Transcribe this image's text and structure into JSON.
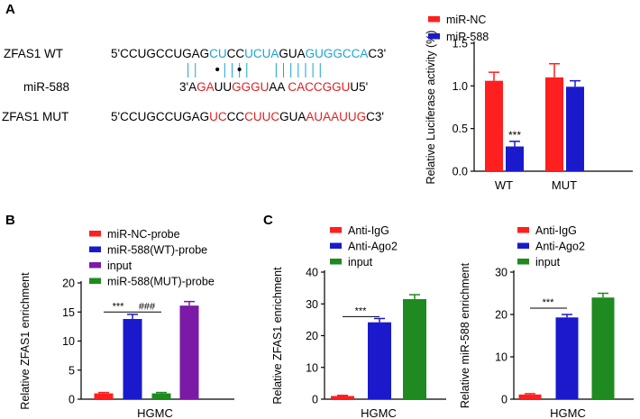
{
  "panels": {
    "a": "A",
    "b": "B",
    "c": "C"
  },
  "colors": {
    "red": "#ff1f1f",
    "blue": "#1a1acc",
    "purple": "#7a1aa6",
    "green": "#1f8a1f",
    "cyan": "#1aa3d6",
    "seq_red": "#e02020"
  },
  "sequences": {
    "wt_label": "ZFAS1 WT",
    "wt_parts": [
      {
        "t": "5'CCUGCCUGAG",
        "c": "black"
      },
      {
        "t": "CU",
        "c": "cyan"
      },
      {
        "t": "CC",
        "c": "black"
      },
      {
        "t": "UCUA",
        "c": "cyan"
      },
      {
        "t": "GUA",
        "c": "black"
      },
      {
        "t": "GUGGCCA",
        "c": "cyan"
      },
      {
        "t": "C3'",
        "c": "black"
      }
    ],
    "mir_label": "miR-588",
    "mir_parts": [
      {
        "t": "3'A",
        "c": "black"
      },
      {
        "t": "GA",
        "c": "seq_red"
      },
      {
        "t": "UU",
        "c": "black"
      },
      {
        "t": "GGGU",
        "c": "seq_red"
      },
      {
        "t": "AA",
        "c": "black"
      },
      {
        "t": "    ",
        "c": "black"
      },
      {
        "t": "CACCGGU",
        "c": "seq_red"
      },
      {
        "t": "U5'",
        "c": "black"
      }
    ],
    "mut_label": "ZFAS1 MUT",
    "mut_parts": [
      {
        "t": "5'CCUGCCUGAG",
        "c": "black"
      },
      {
        "t": "UC",
        "c": "seq_red"
      },
      {
        "t": "CC",
        "c": "black"
      },
      {
        "t": "CUUC",
        "c": "seq_red"
      },
      {
        "t": "GUA",
        "c": "black"
      },
      {
        "t": "AUAAUUG",
        "c": "seq_red"
      },
      {
        "t": "C3'",
        "c": "black"
      }
    ]
  },
  "chart_data": [
    {
      "id": "A",
      "type": "bar",
      "categories": [
        "WT",
        "MUT"
      ],
      "series": [
        {
          "name": "miR-NC",
          "color": "#ff1f1f",
          "values": [
            1.06,
            1.1
          ],
          "errors": [
            0.1,
            0.16
          ]
        },
        {
          "name": "miR-588",
          "color": "#1a1acc",
          "values": [
            0.29,
            0.99
          ],
          "errors": [
            0.06,
            0.07
          ]
        }
      ],
      "ylabel": "Relative Luciferase activity (%)",
      "ylim": [
        0,
        1.5
      ],
      "yticks": [
        "0.0",
        "0.5",
        "1.0",
        "1.5"
      ],
      "annotations": [
        "***"
      ],
      "legend": "top-right"
    },
    {
      "id": "B",
      "type": "bar",
      "categories": [
        "HGMC"
      ],
      "series": [
        {
          "name": "miR-NC-probe",
          "color": "#ff1f1f",
          "values": [
            1.0
          ],
          "errors": [
            0.15
          ]
        },
        {
          "name": "miR-588(WT)-probe",
          "color": "#1a1acc",
          "values": [
            13.8
          ],
          "errors": [
            0.8
          ]
        },
        {
          "name": "input",
          "color": "#7a1aa6",
          "values": [
            16.1
          ],
          "errors": [
            0.7
          ]
        },
        {
          "name": "miR-588(MUT)-probe",
          "color": "#1f8a1f",
          "values": [
            1.0
          ],
          "errors": [
            0.15
          ]
        }
      ],
      "ylabel": "Relative ZFAS1 enrichment",
      "ylim": [
        0,
        20
      ],
      "yticks": [
        "0",
        "5",
        "10",
        "15",
        "20"
      ],
      "annotations": [
        "***",
        "###"
      ],
      "legend": "top"
    },
    {
      "id": "C1",
      "type": "bar",
      "categories": [
        "HGMC"
      ],
      "series": [
        {
          "name": "Anti-IgG",
          "color": "#ff1f1f",
          "values": [
            1.0
          ],
          "errors": [
            0.2
          ]
        },
        {
          "name": "Anti-Ago2",
          "color": "#1a1acc",
          "values": [
            24.2
          ],
          "errors": [
            1.2
          ]
        },
        {
          "name": "input",
          "color": "#1f8a1f",
          "values": [
            31.5
          ],
          "errors": [
            1.4
          ]
        }
      ],
      "ylabel": "Relative ZFAS1 enrichment",
      "ylim": [
        0,
        40
      ],
      "yticks": [
        "0",
        "10",
        "20",
        "30",
        "40"
      ],
      "annotations": [
        "***"
      ],
      "legend": "top"
    },
    {
      "id": "C2",
      "type": "bar",
      "categories": [
        "HGMC"
      ],
      "series": [
        {
          "name": "Anti-IgG",
          "color": "#ff1f1f",
          "values": [
            1.1
          ],
          "errors": [
            0.2
          ]
        },
        {
          "name": "Anti-Ago2",
          "color": "#1a1acc",
          "values": [
            19.3
          ],
          "errors": [
            0.7
          ]
        },
        {
          "name": "input",
          "color": "#1f8a1f",
          "values": [
            24.0
          ],
          "errors": [
            1.0
          ]
        }
      ],
      "ylabel": "Relative miR-588 enrichment",
      "ylim": [
        0,
        30
      ],
      "yticks": [
        "0",
        "10",
        "20",
        "30"
      ],
      "annotations": [
        "***"
      ],
      "legend": "top"
    }
  ]
}
